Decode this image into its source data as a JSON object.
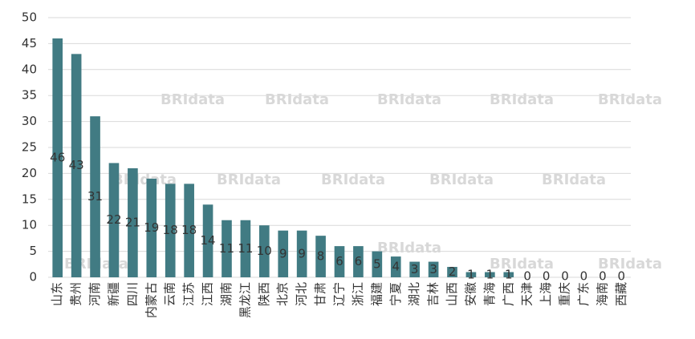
{
  "chart_data": {
    "type": "bar",
    "categories": [
      "山东",
      "贵州",
      "河南",
      "新疆",
      "四川",
      "内蒙古",
      "云南",
      "江苏",
      "江西",
      "湖南",
      "黑龙江",
      "陕西",
      "北京",
      "河北",
      "甘肃",
      "辽宁",
      "浙江",
      "福建",
      "宁夏",
      "湖北",
      "吉林",
      "山西",
      "安徽",
      "青海",
      "广西",
      "天津",
      "上海",
      "重庆",
      "广东",
      "海南",
      "西藏"
    ],
    "values": [
      46,
      43,
      31,
      22,
      21,
      19,
      18,
      18,
      14,
      11,
      11,
      10,
      9,
      9,
      8,
      6,
      6,
      5,
      4,
      3,
      3,
      2,
      1,
      1,
      1,
      0,
      0,
      0,
      0,
      0,
      0
    ],
    "color": "#417b83",
    "ylim": [
      0,
      50
    ],
    "yticks": [
      0,
      5,
      10,
      15,
      20,
      25,
      30,
      35,
      40,
      45,
      50
    ],
    "grid": true,
    "watermark": "BRIdata"
  }
}
